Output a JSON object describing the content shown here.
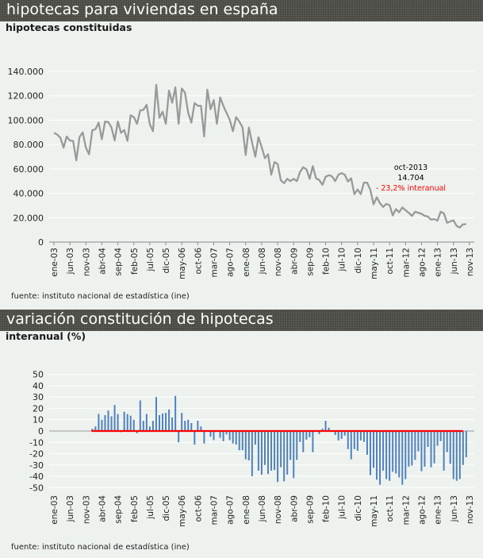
{
  "panel1": {
    "header": "hipotecas para viviendas en españa",
    "subtitle": "hipotecas constituidas",
    "source": "fuente: instituto nacional de estadística (ine)"
  },
  "panel2": {
    "header": "variación constitución de hipotecas",
    "subtitle": "interanual (%)",
    "source": "fuente: instituto nacional de estadística (ine)"
  },
  "colors": {
    "line": "#999999",
    "bars": "#4f81bd",
    "zero_line": "#ff0000",
    "header_bg": "#4a4a44",
    "annotation_change": "#ff0000"
  },
  "chart_data": [
    {
      "type": "line",
      "x_start": "ene-2003",
      "x_end": "oct-2013",
      "frequency": "monthly",
      "xtick_labels": [
        "ene-03",
        "jun-03",
        "nov-03",
        "abr-04",
        "sep-04",
        "feb-05",
        "jul-05",
        "dic-05",
        "may-06",
        "oct-06",
        "mar-07",
        "ago-07",
        "ene-08",
        "jun-08",
        "nov-08",
        "abr-09",
        "sep-09",
        "feb-10",
        "jul-10",
        "dic-10",
        "may-11",
        "oct-11",
        "mar-12",
        "ago-12",
        "ene-13",
        "jun-13",
        "nov-13"
      ],
      "ytick_labels": [
        "0",
        "20.000",
        "40.000",
        "60.000",
        "80.000",
        "100.000",
        "120.000",
        "140.000"
      ],
      "ylim": [
        0,
        140000
      ],
      "grid": true,
      "values": [
        89600,
        88300,
        85700,
        77500,
        86600,
        83300,
        83000,
        67000,
        86000,
        90000,
        77500,
        72000,
        91800,
        92600,
        98000,
        84400,
        99000,
        98500,
        94000,
        83500,
        99000,
        89600,
        92000,
        83000,
        104000,
        102500,
        97000,
        108000,
        108500,
        112600,
        96700,
        91000,
        129000,
        102000,
        107000,
        97000,
        124300,
        114300,
        127000,
        97000,
        126000,
        122700,
        106000,
        98000,
        114000,
        111800,
        111800,
        86600,
        125000,
        109000,
        116500,
        97000,
        118700,
        111800,
        106000,
        100500,
        91000,
        102500,
        99000,
        94000,
        71400,
        94000,
        81400,
        70000,
        86000,
        78000,
        68800,
        72000,
        55300,
        65700,
        64000,
        50600,
        48400,
        51900,
        50000,
        51900,
        50000,
        57500,
        61400,
        59700,
        51900,
        62300,
        52300,
        51000,
        47000,
        53600,
        54900,
        54000,
        50000,
        55300,
        56600,
        55300,
        49700,
        52300,
        39300,
        43200,
        39300,
        48800,
        48800,
        42800,
        31000,
        36700,
        31900,
        28800,
        31400,
        30300,
        21900,
        27100,
        24500,
        28400,
        26200,
        24000,
        21500,
        24900,
        24000,
        23200,
        21500,
        21000,
        18400,
        18900,
        17600,
        24900,
        23600,
        15800,
        16900,
        17800,
        13200,
        11900,
        14600,
        14704
      ],
      "annotation": {
        "date": "oct-2013",
        "value": "14.704",
        "change": "- 23,2% interanual"
      }
    },
    {
      "type": "bar",
      "x_start": "ene-2003",
      "x_end": "oct-2013",
      "frequency": "monthly",
      "xtick_labels": [
        "ene-03",
        "jun-03",
        "nov-03",
        "abr-04",
        "sep-04",
        "feb-05",
        "jul-05",
        "dic-05",
        "may-06",
        "oct-06",
        "mar-07",
        "ago-07",
        "ene-08",
        "jun-08",
        "nov-08",
        "abr-09",
        "sep-09",
        "feb-10",
        "jul-10",
        "dic-10",
        "may-11",
        "oct-11",
        "mar-12",
        "ago-12",
        "ene-13",
        "jun-13",
        "nov-13"
      ],
      "ytick_labels": [
        "50",
        "40",
        "30",
        "20",
        "10",
        "0",
        "-10",
        "-20",
        "-30",
        "-40",
        "-50"
      ],
      "ylim": [
        -50,
        50
      ],
      "grid": true,
      "values": [
        null,
        null,
        null,
        null,
        null,
        null,
        null,
        null,
        null,
        null,
        null,
        null,
        2,
        4,
        15,
        10,
        14,
        18,
        13,
        23,
        15,
        -1,
        17,
        15,
        13.5,
        10,
        -2,
        27,
        9,
        15,
        4,
        9,
        30,
        14,
        15.5,
        16,
        19,
        12,
        31,
        -10,
        16,
        9,
        10,
        7,
        -12,
        9,
        4,
        -11,
        0,
        -5,
        -8,
        0,
        -6,
        -9,
        -3,
        -8,
        -11,
        -12,
        -17,
        -17,
        -25,
        -26,
        -40,
        -12,
        -35,
        -38.5,
        -30,
        -38,
        -35,
        -34.5,
        -45,
        -32,
        -44.5,
        -38.5,
        -25.5,
        -41.5,
        -25.5,
        -9.7,
        -18.7,
        -7.6,
        -5.5,
        -18.7,
        0,
        -2.8,
        2,
        9,
        3,
        0,
        -3.5,
        -8.3,
        -7,
        -4,
        -16,
        -25,
        -16,
        -17.5,
        -8.3,
        -9.7,
        -21,
        -39,
        -32.5,
        -43,
        -47.5,
        -35,
        -42.5,
        -44,
        -36,
        -37.5,
        -41,
        -47.5,
        -42.5,
        -31.5,
        -30.5,
        -25.5,
        -18,
        -35.5,
        -31.5,
        -14,
        -32,
        -28.5,
        -13,
        -9,
        -35,
        -18.7,
        -29,
        -42.5,
        -44,
        -42.5,
        -30,
        -23.2
      ]
    }
  ]
}
